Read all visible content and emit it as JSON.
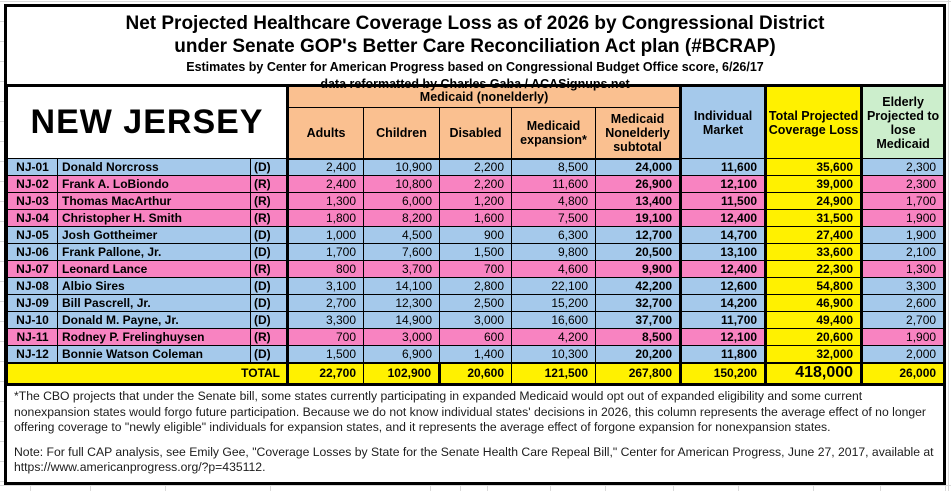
{
  "title": {
    "line1": "Net Projected Healthcare Coverage Loss as of 2026 by Congressional District",
    "line2": "under Senate GOP's Better Care Reconciliation Act plan (#BCRAP)",
    "line3": "Estimates by Center for American Progress based on Congressional Budget Office score, 6/26/17",
    "line4": "data reformatted by Charles Gaba / ACASignups.net"
  },
  "state_label": "NEW JERSEY",
  "header": {
    "medicaid_group": "Medicaid (nonelderly)",
    "columns": [
      "Adults",
      "Children",
      "Disabled",
      "Medicaid expansion*",
      "Medicaid Nonelderly subtotal"
    ],
    "individual_market": "Individual Market",
    "total_projected": "Total Projected Coverage Loss",
    "elderly": "Elderly Projected to lose Medicaid"
  },
  "colors": {
    "peach": "#FAC090",
    "blue": "#A5C9EB",
    "pink": "#F883C1",
    "yellow": "#FFF100",
    "green": "#CCEECC"
  },
  "rows": [
    {
      "district": "NJ-01",
      "rep": "Donald Norcross",
      "party": "(D)",
      "values": [
        "2,400",
        "10,900",
        "2,200",
        "8,500",
        "24,000",
        "11,600",
        "35,600",
        "2,300"
      ]
    },
    {
      "district": "NJ-02",
      "rep": "Frank A. LoBiondo",
      "party": "(R)",
      "values": [
        "2,400",
        "10,800",
        "2,200",
        "11,600",
        "26,900",
        "12,100",
        "39,000",
        "2,300"
      ]
    },
    {
      "district": "NJ-03",
      "rep": "Thomas MacArthur",
      "party": "(R)",
      "values": [
        "1,300",
        "6,000",
        "1,200",
        "4,800",
        "13,400",
        "11,500",
        "24,900",
        "1,700"
      ]
    },
    {
      "district": "NJ-04",
      "rep": "Christopher H. Smith",
      "party": "(R)",
      "values": [
        "1,800",
        "8,200",
        "1,600",
        "7,500",
        "19,100",
        "12,400",
        "31,500",
        "1,900"
      ]
    },
    {
      "district": "NJ-05",
      "rep": "Josh Gottheimer",
      "party": "(D)",
      "values": [
        "1,000",
        "4,500",
        "900",
        "6,300",
        "12,700",
        "14,700",
        "27,400",
        "1,900"
      ]
    },
    {
      "district": "NJ-06",
      "rep": "Frank Pallone, Jr.",
      "party": "(D)",
      "values": [
        "1,700",
        "7,600",
        "1,500",
        "9,800",
        "20,500",
        "13,100",
        "33,600",
        "2,100"
      ]
    },
    {
      "district": "NJ-07",
      "rep": "Leonard Lance",
      "party": "(R)",
      "values": [
        "800",
        "3,700",
        "700",
        "4,600",
        "9,900",
        "12,400",
        "22,300",
        "1,300"
      ]
    },
    {
      "district": "NJ-08",
      "rep": "Albio Sires",
      "party": "(D)",
      "values": [
        "3,100",
        "14,100",
        "2,800",
        "22,100",
        "42,200",
        "12,600",
        "54,800",
        "3,300"
      ]
    },
    {
      "district": "NJ-09",
      "rep": "Bill Pascrell, Jr.",
      "party": "(D)",
      "values": [
        "2,700",
        "12,300",
        "2,500",
        "15,200",
        "32,700",
        "14,200",
        "46,900",
        "2,600"
      ]
    },
    {
      "district": "NJ-10",
      "rep": "Donald M. Payne, Jr.",
      "party": "(D)",
      "values": [
        "3,300",
        "14,900",
        "3,000",
        "16,600",
        "37,700",
        "11,700",
        "49,400",
        "2,700"
      ]
    },
    {
      "district": "NJ-11",
      "rep": "Rodney P. Frelinghuysen",
      "party": "(R)",
      "values": [
        "700",
        "3,000",
        "600",
        "4,200",
        "8,500",
        "12,100",
        "20,600",
        "1,900"
      ]
    },
    {
      "district": "NJ-12",
      "rep": "Bonnie Watson Coleman",
      "party": "(D)",
      "values": [
        "1,500",
        "6,900",
        "1,400",
        "10,300",
        "20,200",
        "11,800",
        "32,000",
        "2,000"
      ]
    }
  ],
  "total_row": {
    "label": "TOTAL",
    "values": [
      "22,700",
      "102,900",
      "20,600",
      "121,500",
      "267,800",
      "150,200",
      "418,000",
      "26,000"
    ]
  },
  "footnotes": {
    "asterisk": "*The CBO projects that under the Senate bill, some states currently participating in expanded Medicaid would opt out of expanded eligibility and some current nonexpansion states would forgo future participation. Because we do not know individual states' decisions in 2026, this column represents the average effect of no longer offering coverage to \"newly eligible\" individuals for expansion states, and it represents the average effect of forgone expansion for nonexpansion states.",
    "note": "Note: For full CAP analysis, see Emily Gee, \"Coverage Losses by State for the Senate Health Care Repeal Bill,\" Center for American Progress, June 27, 2017, available at https://www.americanprogress.org/?p=435112."
  }
}
